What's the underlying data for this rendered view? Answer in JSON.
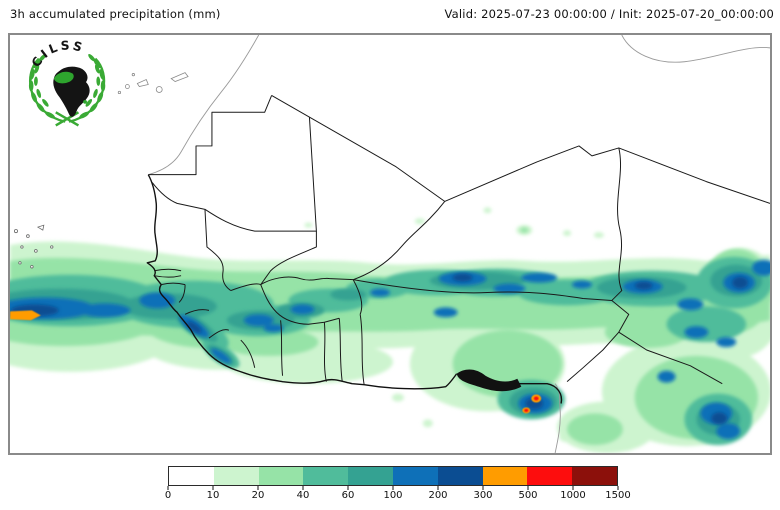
{
  "header": {
    "title": "3h accumulated precipitation (mm)",
    "valid_label": "Valid: 2025-07-23 00:00:00 / Init: 2025-07-20_00:00:00"
  },
  "logo": {
    "org": "CILSS"
  },
  "colorbar": {
    "levels": [
      "0",
      "10",
      "20",
      "40",
      "60",
      "100",
      "200",
      "300",
      "500",
      "1000",
      "1500"
    ],
    "colors": [
      "#ffffff",
      "#cdf4cf",
      "#96e3a7",
      "#50bc9b",
      "#34a292",
      "#0e70b8",
      "#0b4d92",
      "#ff9c00",
      "#fd0d0d",
      "#8c100b"
    ],
    "units": "mm"
  },
  "chart_data": {
    "type": "heatmap",
    "title": "3h accumulated precipitation (mm)",
    "legend_levels_mm": [
      0,
      10,
      20,
      40,
      60,
      100,
      200,
      300,
      500,
      1000,
      1500
    ],
    "legend_colors": [
      "#ffffff",
      "#cdf4cf",
      "#96e3a7",
      "#50bc9b",
      "#34a292",
      "#0e70b8",
      "#0b4d92",
      "#ff9c00",
      "#fd0d0d",
      "#8c100b"
    ],
    "valid_time": "2025-07-23 00:00:00",
    "init_time": "2025-07-20_00:00:00",
    "region": "West Africa / Sahel",
    "features": [
      "Heavy rain band (100-500 mm) over Atlantic west of Senegal",
      "Rain band 20-200 mm across Sahel from Senegal through Guinea, Mali, Burkina Faso, Niger and Nigeria",
      "Local maxima 300-1000 mm at Niger Delta / Cameroon coast",
      "Scattered 100-300 mm cells over eastern Nigeria and Chad",
      "Dry (0-10 mm) across Sahara in the north"
    ]
  }
}
